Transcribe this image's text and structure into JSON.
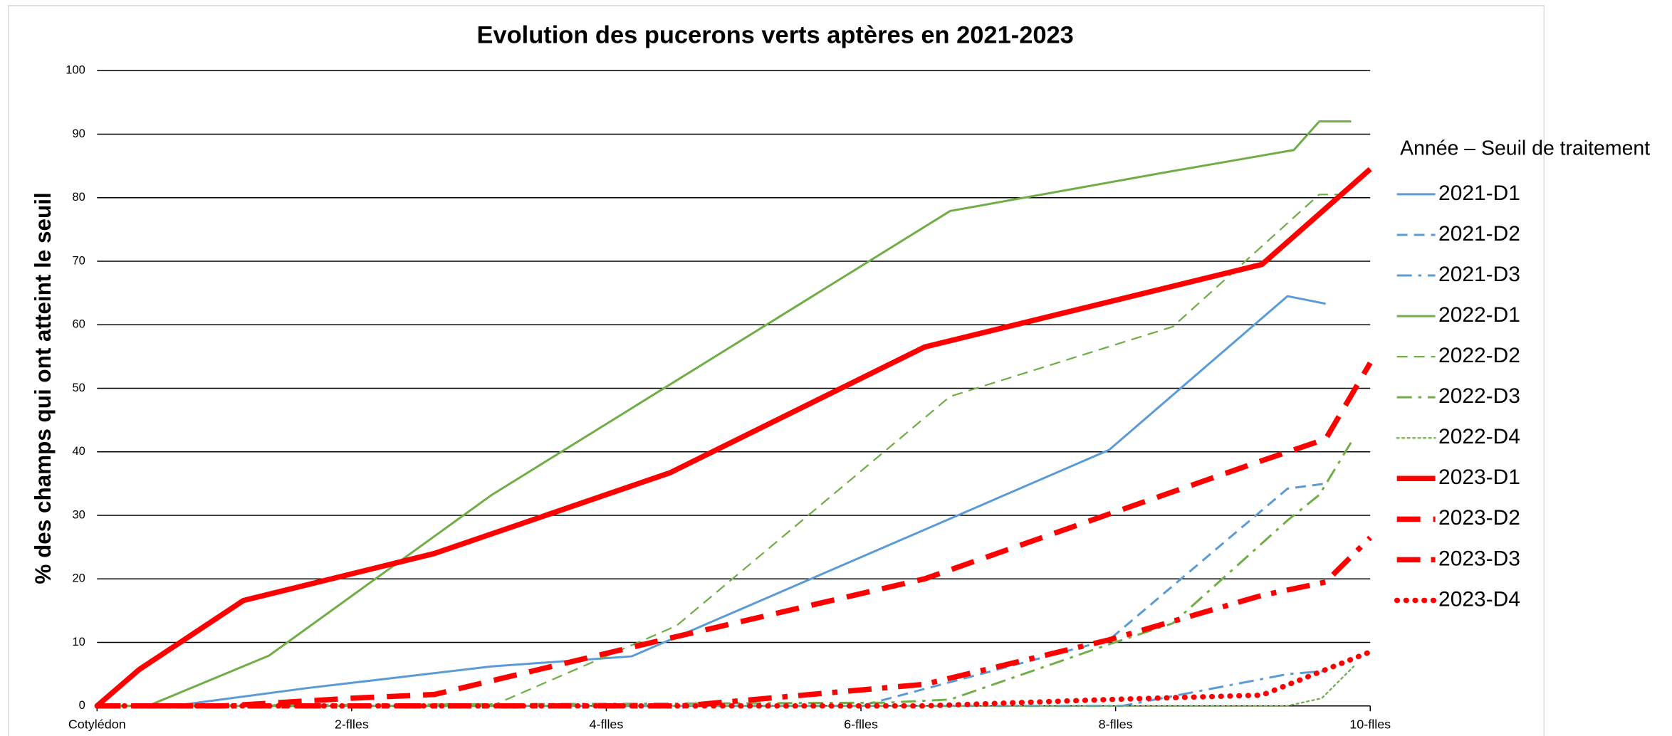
{
  "chart_data": {
    "type": "line",
    "title": "Evolution des pucerons verts aptères en 2021-2023",
    "y_label": "% des champs qui ont atteint le seuil",
    "legend_title": "Année – Seuil de traitement",
    "legend_position": "right",
    "grid": true,
    "xlim": [
      0,
      10
    ],
    "xticks": [
      {
        "value": 0,
        "label": "Cotylédon"
      },
      {
        "value": 2,
        "label": "2-flles"
      },
      {
        "value": 4,
        "label": "4-flles"
      },
      {
        "value": 6,
        "label": "6-flles"
      },
      {
        "value": 8,
        "label": "8-flles"
      },
      {
        "value": 10,
        "label": "10-flles"
      }
    ],
    "ylim": [
      0,
      100
    ],
    "yticks": [
      0,
      10,
      20,
      30,
      40,
      50,
      60,
      70,
      80,
      90,
      100
    ],
    "series": [
      {
        "name": "2021-D1",
        "color": "#5b9bd5",
        "style": "solid",
        "width": 2,
        "x": [
          0,
          0.6,
          1.65,
          3.1,
          4.2,
          7.95,
          9.35,
          9.65
        ],
        "values": [
          0,
          0,
          2.8,
          6.2,
          7.8,
          40.3,
          64.5,
          63.3
        ]
      },
      {
        "name": "2021-D2",
        "color": "#5b9bd5",
        "style": "dash",
        "width": 2,
        "x": [
          0,
          6,
          7.95,
          9.35,
          9.65
        ],
        "values": [
          0,
          0,
          10.4,
          34.2,
          35
        ]
      },
      {
        "name": "2021-D3",
        "color": "#5b9bd5",
        "style": "dashdot",
        "width": 2,
        "x": [
          0,
          8.05,
          9.35,
          9.65
        ],
        "values": [
          0,
          0,
          5,
          5.5
        ]
      },
      {
        "name": "2022-D1",
        "color": "#70ad47",
        "style": "solid",
        "width": 2,
        "x": [
          0,
          0.4,
          1.35,
          3.1,
          6.7,
          8.45,
          9.4,
          9.6,
          9.85
        ],
        "values": [
          0,
          0,
          7.9,
          33.2,
          77.9,
          84.2,
          87.5,
          92,
          92
        ]
      },
      {
        "name": "2022-D2",
        "color": "#70ad47",
        "style": "dash",
        "width": 1.5,
        "x": [
          0,
          3.1,
          4.55,
          6.7,
          8.45,
          9.6,
          9.85
        ],
        "values": [
          0,
          0,
          12.6,
          48.7,
          59.7,
          80.5,
          80.5
        ]
      },
      {
        "name": "2022-D3",
        "color": "#70ad47",
        "style": "dashdot",
        "width": 2,
        "x": [
          0,
          6.2,
          6.7,
          7.95,
          8.45,
          9.35,
          9.6,
          9.85
        ],
        "values": [
          0,
          0.5,
          1,
          9.7,
          13,
          29.2,
          33.2,
          41.5
        ]
      },
      {
        "name": "2022-D4",
        "color": "#70ad47",
        "style": "dot",
        "width": 1.5,
        "x": [
          0,
          9.35,
          9.62,
          9.87
        ],
        "values": [
          0,
          0,
          1.2,
          6.2
        ]
      },
      {
        "name": "2023-D1",
        "color": "#ff0000",
        "style": "solid",
        "width": 5,
        "x": [
          0,
          0.33,
          1.15,
          2.65,
          4.5,
          6.5,
          9.15,
          10
        ],
        "values": [
          0,
          5.7,
          16.6,
          24,
          36.7,
          56.5,
          69.5,
          84.5
        ]
      },
      {
        "name": "2023-D2",
        "color": "#ff0000",
        "style": "dash",
        "width": 5,
        "x": [
          0,
          1,
          2,
          2.65,
          4.55,
          6.5,
          7.95,
          9.15,
          9.65,
          10
        ],
        "values": [
          0,
          0,
          1.2,
          1.8,
          10.9,
          20,
          30.2,
          38.6,
          42,
          54
        ]
      },
      {
        "name": "2023-D3",
        "color": "#ff0000",
        "style": "dashdot",
        "width": 5,
        "x": [
          0,
          4.6,
          6.5,
          7.95,
          9.15,
          9.65,
          10
        ],
        "values": [
          0,
          0,
          3.4,
          10.4,
          17.4,
          19.5,
          26.5
        ]
      },
      {
        "name": "2023-D4",
        "color": "#ff0000",
        "style": "dot",
        "width": 5,
        "x": [
          0,
          6.5,
          7.95,
          9.15,
          9.65,
          10
        ],
        "values": [
          0,
          0,
          1,
          1.7,
          5.7,
          8.5
        ]
      }
    ]
  }
}
